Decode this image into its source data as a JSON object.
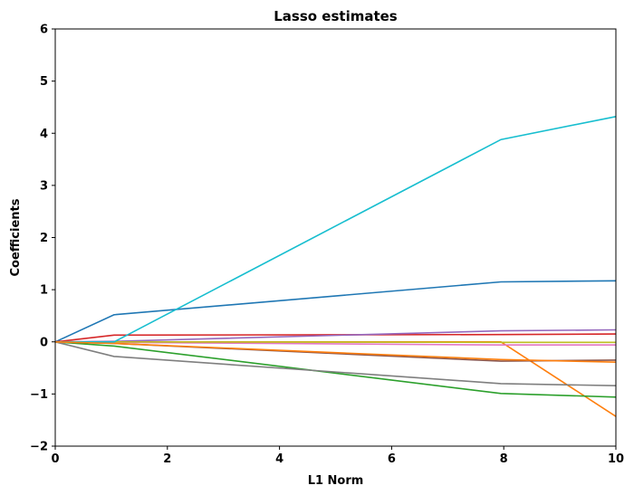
{
  "chart_data": {
    "type": "line",
    "title": "Lasso estimates",
    "xlabel": "L1 Norm",
    "ylabel": "Coefficients",
    "xlim": [
      0,
      10
    ],
    "ylim": [
      -2,
      6
    ],
    "xticks": [
      "0",
      "2",
      "4",
      "6",
      "8",
      "10"
    ],
    "yticks": [
      "−2",
      "−1",
      "0",
      "1",
      "2",
      "3",
      "4",
      "5",
      "6"
    ],
    "grid": false,
    "x": [
      0,
      1.05,
      7.95,
      10
    ],
    "series": [
      {
        "color": "#1f77b4",
        "values": [
          0,
          0.52,
          1.15,
          1.17
        ]
      },
      {
        "color": "#ff7f0e",
        "values": [
          0,
          0,
          0,
          -1.43
        ]
      },
      {
        "color": "#2ca02c",
        "values": [
          0,
          -0.08,
          -0.99,
          -1.06
        ]
      },
      {
        "color": "#d62728",
        "values": [
          0,
          0.13,
          0.14,
          0.15
        ]
      },
      {
        "color": "#9467bd",
        "values": [
          0,
          0.01,
          0.21,
          0.23
        ]
      },
      {
        "color": "#8c564b",
        "values": [
          0,
          -0.03,
          -0.37,
          -0.35
        ]
      },
      {
        "color": "#e377c2",
        "values": [
          0,
          -0.01,
          -0.06,
          -0.06
        ]
      },
      {
        "color": "#7f7f7f",
        "values": [
          0,
          -0.28,
          -0.8,
          -0.84
        ]
      },
      {
        "color": "#bcbd22",
        "values": [
          0,
          0,
          -0.01,
          -0.01
        ]
      },
      {
        "color": "#17becf",
        "values": [
          0,
          0,
          3.88,
          4.32
        ]
      },
      {
        "color": "#ff7f0e",
        "values": [
          0,
          -0.03,
          -0.34,
          -0.39
        ]
      }
    ]
  }
}
